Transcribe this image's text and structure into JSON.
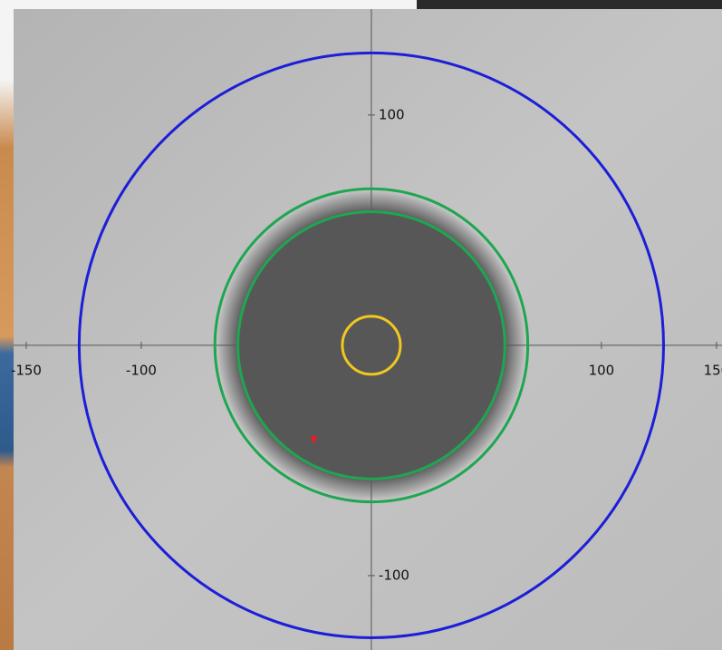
{
  "chart_data": {
    "type": "target",
    "xlim": [
      -155.5,
      152.4
    ],
    "ylim": [
      -132.3,
      146
    ],
    "xticks": [
      -150,
      -100,
      100,
      150
    ],
    "yticks": [
      -100,
      100
    ],
    "disc": {
      "color": "#575757",
      "radius": 67
    },
    "circles": [
      {
        "color": "#1c1ed8",
        "radius": 127
      },
      {
        "color": "#1ea650",
        "radius": 68
      },
      {
        "color": "#1ea650",
        "radius": 58
      },
      {
        "color": "#f2c81e",
        "radius": 12.6
      }
    ],
    "points": {
      "x": [
        -25
      ],
      "y": [
        -41
      ],
      "color": "#e0202a"
    }
  }
}
